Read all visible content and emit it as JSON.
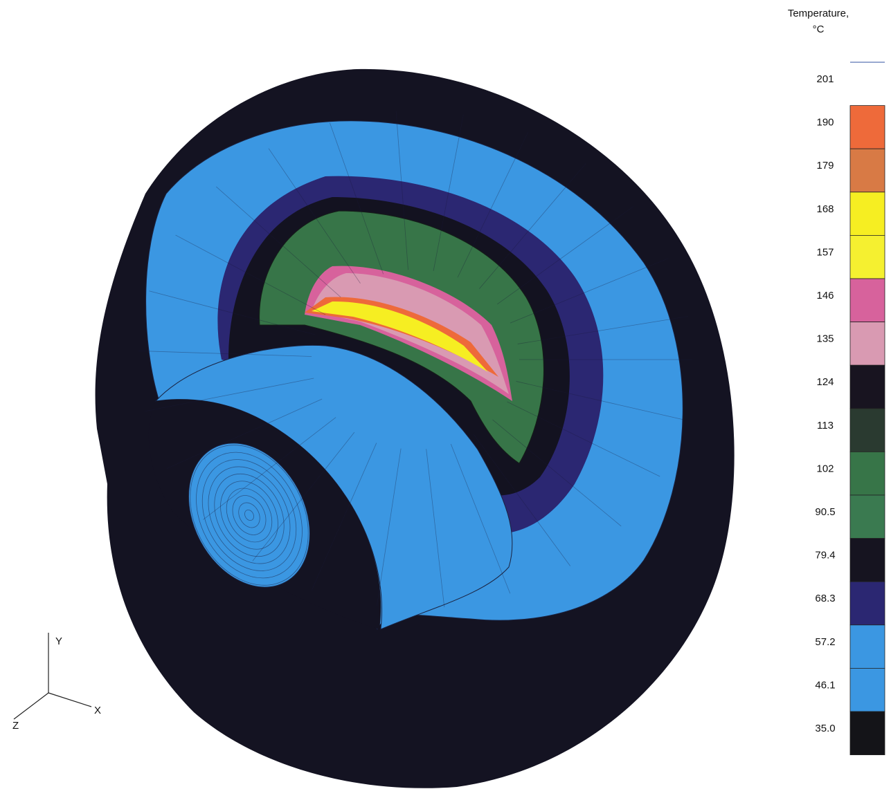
{
  "legend": {
    "title": [
      "Temperature,",
      "°C"
    ],
    "levels": [
      "201",
      "190",
      "179",
      "168",
      "157",
      "146",
      "135",
      "124",
      "113",
      "102",
      "90.5",
      "79.4",
      "68.3",
      "57.2",
      "46.1",
      "35.0"
    ]
  },
  "axes": {
    "y": "Y",
    "x": "X",
    "z": "Z"
  }
}
